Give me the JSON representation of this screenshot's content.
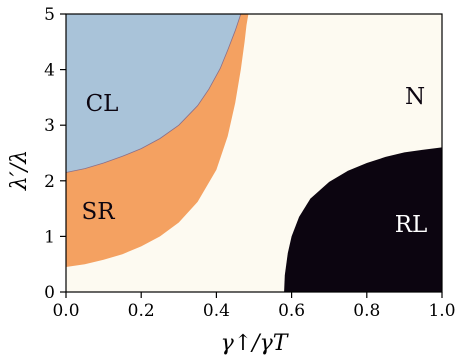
{
  "chart_data": {
    "type": "heatmap",
    "title": "",
    "xlabel": "γ↑/γT",
    "ylabel": "λ′/λ",
    "xlim": [
      0.0,
      1.0
    ],
    "ylim": [
      0,
      5
    ],
    "x_ticks": [
      "0.0",
      "0.2",
      "0.4",
      "0.6",
      "0.8",
      "1.0"
    ],
    "y_ticks": [
      "0",
      "1",
      "2",
      "3",
      "4",
      "5"
    ],
    "grid": false,
    "regions": [
      {
        "label": "N",
        "color": "#fdfaf1"
      },
      {
        "label": "CL",
        "color": "#a9c3d9"
      },
      {
        "label": "SR",
        "color": "#f4a161"
      },
      {
        "label": "RL",
        "color": "#0c0510"
      }
    ],
    "boundaries": {
      "CL_upper_edge": {
        "x": [
          0.0,
          0.05,
          0.1,
          0.15,
          0.2,
          0.25,
          0.3,
          0.35,
          0.38,
          0.41,
          0.43,
          0.45,
          0.465
        ],
        "y": [
          2.15,
          2.22,
          2.32,
          2.44,
          2.58,
          2.76,
          3.0,
          3.35,
          3.65,
          4.02,
          4.35,
          4.7,
          5.0
        ]
      },
      "SR_upper_edge": {
        "x": [
          0.0,
          0.05,
          0.1,
          0.15,
          0.2,
          0.25,
          0.3,
          0.35,
          0.4,
          0.43,
          0.45,
          0.465,
          0.475,
          0.48,
          0.485
        ],
        "y": [
          0.45,
          0.5,
          0.58,
          0.68,
          0.82,
          1.0,
          1.25,
          1.62,
          2.2,
          2.8,
          3.4,
          4.0,
          4.5,
          4.8,
          5.0
        ]
      },
      "RL_edge": {
        "x": [
          0.58,
          0.582,
          0.59,
          0.6,
          0.62,
          0.65,
          0.7,
          0.75,
          0.8,
          0.85,
          0.9,
          0.95,
          1.0
        ],
        "y": [
          0.0,
          0.3,
          0.7,
          1.0,
          1.35,
          1.68,
          1.98,
          2.18,
          2.32,
          2.43,
          2.51,
          2.56,
          2.6
        ]
      }
    }
  },
  "labels": {
    "CL": "CL",
    "SR": "SR",
    "N": "N",
    "RL": "RL"
  }
}
